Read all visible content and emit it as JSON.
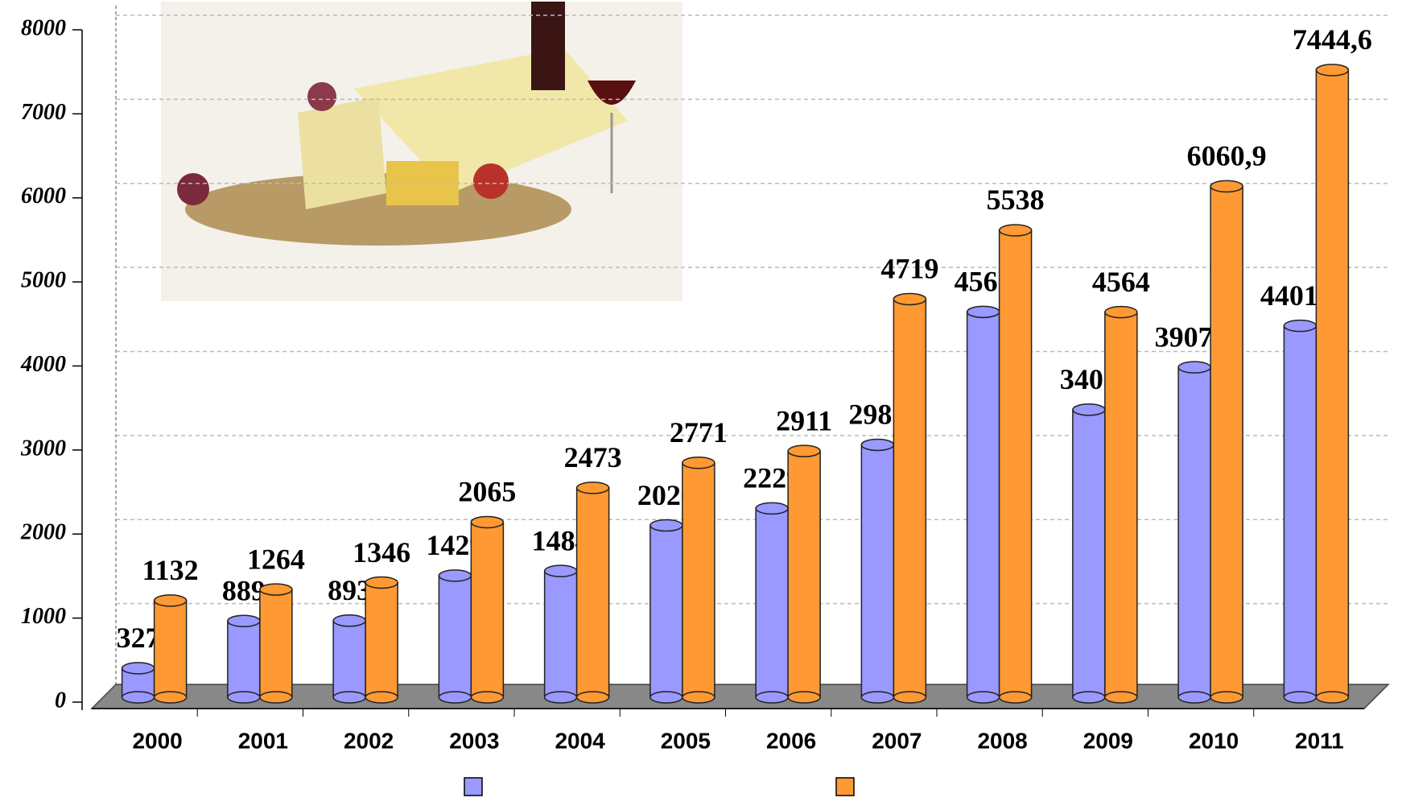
{
  "chart_data": {
    "type": "bar",
    "categories": [
      "2000",
      "2001",
      "2002",
      "2003",
      "2004",
      "2005",
      "2006",
      "2007",
      "2008",
      "2009",
      "2010",
      "2011"
    ],
    "series": [
      {
        "color": "#9999ff",
        "values": [
          327,
          889,
          893,
          1429,
          1484,
          2026,
          2229,
          2985,
          4567,
          3403,
          3907.8,
          4401.0
        ],
        "value_labels": [
          "327",
          "889",
          "893",
          "1429",
          "1484",
          "2026",
          "2229",
          "2985",
          "4567",
          "3403",
          "3907,8",
          "4401,0"
        ]
      },
      {
        "color": "#ff9933",
        "values": [
          1132,
          1264,
          1346,
          2065,
          2473,
          2771,
          2911,
          4719,
          5538,
          4564,
          6060.9,
          7444.6
        ],
        "value_labels": [
          "1132",
          "1264",
          "1346",
          "2065",
          "2473",
          "2771",
          "2911",
          "4719",
          "5538",
          "4564",
          "6060,9",
          "7444,6"
        ]
      }
    ],
    "ylim": [
      0,
      8000
    ],
    "yticks": [
      0,
      1000,
      2000,
      3000,
      4000,
      5000,
      6000,
      7000,
      8000
    ],
    "grid": true
  }
}
